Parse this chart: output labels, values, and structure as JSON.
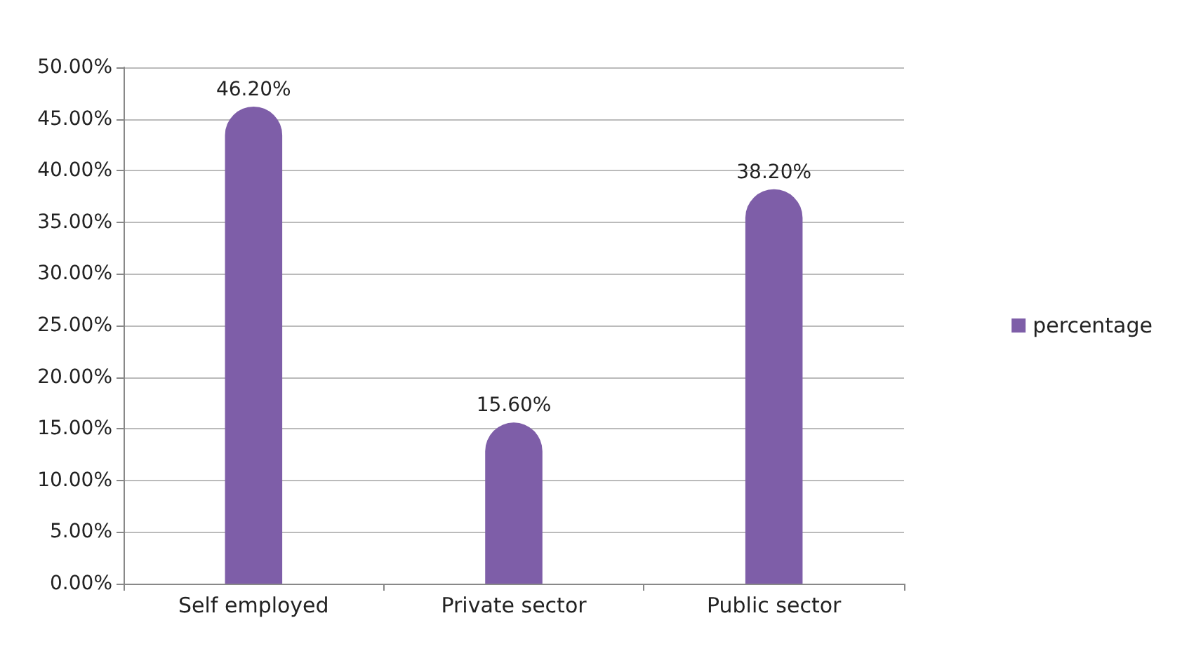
{
  "chart_data": {
    "type": "bar",
    "categories": [
      "Self employed",
      "Private sector",
      "Public sector"
    ],
    "series": [
      {
        "name": "percentage",
        "color": "#7e5ea8",
        "values": [
          46.2,
          15.6,
          38.2
        ],
        "value_labels": [
          "46.20%",
          "15.60%",
          "38.20%"
        ]
      }
    ],
    "ylim": [
      0,
      50
    ],
    "yticks": [
      {
        "value": 0,
        "label": "0.00%"
      },
      {
        "value": 5,
        "label": "5.00%"
      },
      {
        "value": 10,
        "label": "10.00%"
      },
      {
        "value": 15,
        "label": "15.00%"
      },
      {
        "value": 20,
        "label": "20.00%"
      },
      {
        "value": 25,
        "label": "25.00%"
      },
      {
        "value": 30,
        "label": "30.00%"
      },
      {
        "value": 35,
        "label": "35.00%"
      },
      {
        "value": 40,
        "label": "40.00%"
      },
      {
        "value": 45,
        "label": "45.00%"
      },
      {
        "value": 50,
        "label": "50.00%"
      }
    ],
    "grid": true,
    "legend": "right"
  }
}
